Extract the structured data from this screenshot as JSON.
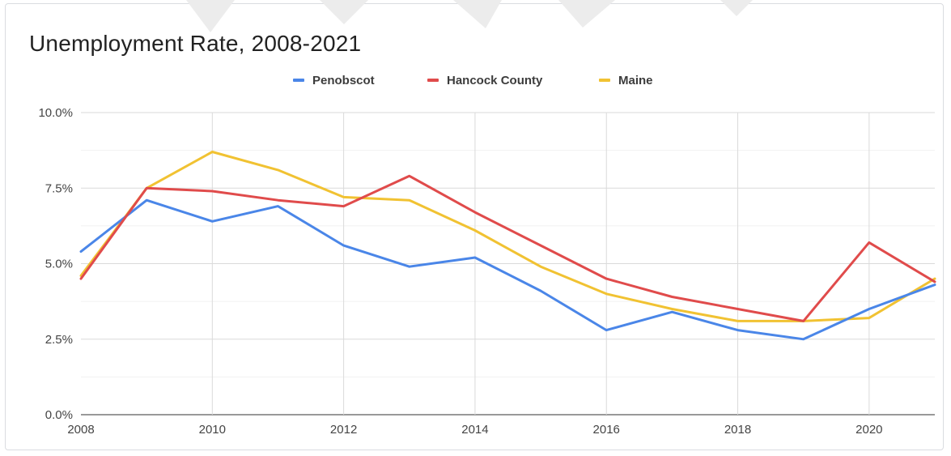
{
  "chart_data": {
    "type": "line",
    "title": "Unemployment Rate, 2008-2021",
    "xlabel": "",
    "ylabel": "",
    "x": [
      2008,
      2009,
      2010,
      2011,
      2012,
      2013,
      2014,
      2015,
      2016,
      2017,
      2018,
      2019,
      2020,
      2021
    ],
    "xlim": [
      2008,
      2021
    ],
    "ylim": [
      0,
      10
    ],
    "x_ticks": [
      2008,
      2010,
      2012,
      2014,
      2016,
      2018,
      2020
    ],
    "x_tick_labels": [
      "2008",
      "2010",
      "2012",
      "2014",
      "2016",
      "2018",
      "2020"
    ],
    "y_ticks": [
      0,
      2.5,
      5,
      7.5,
      10
    ],
    "y_tick_labels": [
      "0.0%",
      "2.5%",
      "5.0%",
      "7.5%",
      "10.0%"
    ],
    "grid": true,
    "legend_position": "top",
    "series": [
      {
        "name": "Penobscot",
        "color": "#4a86e8",
        "values": [
          5.4,
          7.1,
          6.4,
          6.9,
          5.6,
          4.9,
          5.2,
          4.1,
          2.8,
          3.4,
          2.8,
          2.5,
          3.5,
          4.3
        ]
      },
      {
        "name": "Hancock County",
        "color": "#e04b4b",
        "values": [
          4.5,
          7.5,
          7.4,
          7.1,
          6.9,
          7.9,
          6.7,
          5.6,
          4.5,
          3.9,
          3.5,
          3.1,
          5.7,
          4.4
        ]
      },
      {
        "name": "Maine",
        "color": "#f1c232",
        "values": [
          4.6,
          7.5,
          8.7,
          8.1,
          7.2,
          7.1,
          6.1,
          4.9,
          4.0,
          3.5,
          3.1,
          3.1,
          3.2,
          4.5
        ]
      }
    ]
  }
}
